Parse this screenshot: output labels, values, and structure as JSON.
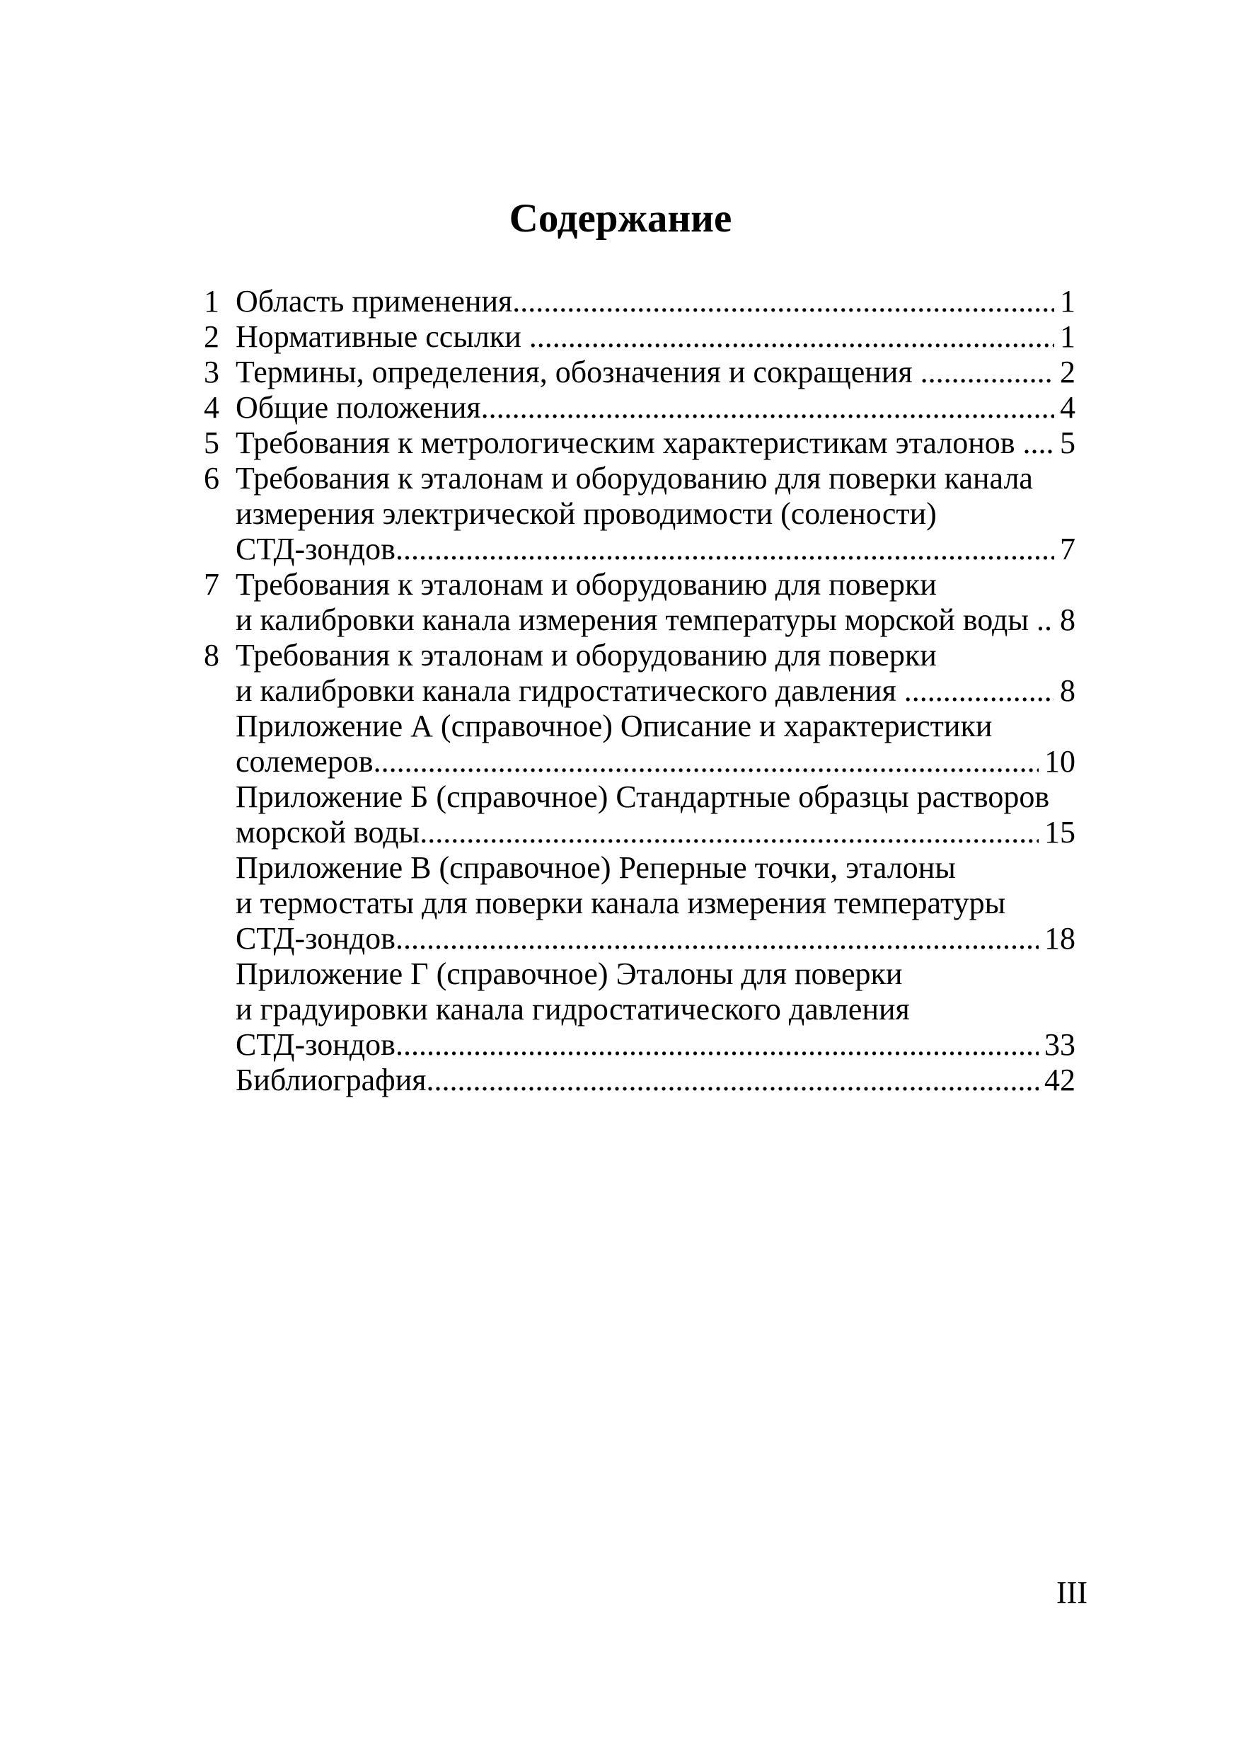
{
  "document": {
    "title": "Содержание",
    "footer_page_number": "III"
  },
  "toc_lines": [
    {
      "num": "1",
      "text": "Область применения",
      "page": "1"
    },
    {
      "num": "2",
      "text": "Нормативные ссылки ",
      "page": "1"
    },
    {
      "num": "3",
      "text": "Термины, определения, обозначения и сокращения ",
      "page": "2"
    },
    {
      "num": "4",
      "text": "Общие положения",
      "page": "4"
    },
    {
      "num": "5",
      "text": "Требования к метрологическим характеристикам эталонов ",
      "page": "5"
    },
    {
      "num": "6",
      "text": "Требования к эталонам и оборудованию для поверки канала"
    },
    {
      "num": "",
      "text": "измерения электрической проводимости (солености)"
    },
    {
      "num": "",
      "text": "СТД-зондов",
      "page": "7"
    },
    {
      "num": "7",
      "text": "Требования к эталонам и оборудованию для поверки"
    },
    {
      "num": "",
      "text": "и калибровки канала измерения температуры морской воды ",
      "page": "8"
    },
    {
      "num": "8",
      "text": "Требования к эталонам и оборудованию для поверки"
    },
    {
      "num": "",
      "text": "и калибровки канала гидростатического давления ",
      "page": "8"
    },
    {
      "num": "",
      "text": "Приложение А (справочное) Описание и характеристики"
    },
    {
      "num": "",
      "text": "солемеров",
      "page": "10"
    },
    {
      "num": "",
      "text": "Приложение Б (справочное) Стандартные образцы растворов"
    },
    {
      "num": "",
      "text": "морской воды",
      "page": "15"
    },
    {
      "num": "",
      "text": "Приложение В (справочное) Реперные точки, эталоны"
    },
    {
      "num": "",
      "text": "и термостаты для поверки канала измерения температуры"
    },
    {
      "num": "",
      "text": "СТД-зондов",
      "page": "18"
    },
    {
      "num": "",
      "text": "Приложение Г (справочное) Эталоны для поверки"
    },
    {
      "num": "",
      "text": "и градуировки канала гидростатического давления"
    },
    {
      "num": "",
      "text": "СТД-зондов",
      "page": "33"
    },
    {
      "num": "",
      "text": "Библиография",
      "page": "42"
    }
  ]
}
